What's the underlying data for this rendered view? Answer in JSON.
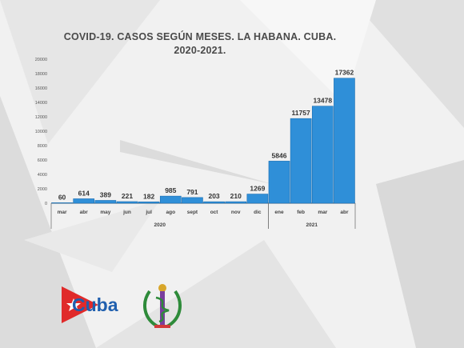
{
  "chart_data": {
    "type": "bar",
    "title_line1": "COVID-19. CASOS SEGÚN MESES. LA HABANA. CUBA.",
    "title_line2": "2020-2021.",
    "categories": [
      "mar",
      "abr",
      "may",
      "jun",
      "jul",
      "ago",
      "sept",
      "oct",
      "nov",
      "dic",
      "ene",
      "feb",
      "mar",
      "abr"
    ],
    "years": [
      {
        "label": "2020",
        "from": 0,
        "to": 9
      },
      {
        "label": "2021",
        "from": 10,
        "to": 13
      }
    ],
    "values": [
      60,
      614,
      389,
      221,
      182,
      985,
      791,
      203,
      210,
      1269,
      5846,
      11757,
      13478,
      17362
    ],
    "value_labels": [
      "60",
      "614",
      "389",
      "221",
      "182",
      "985",
      "791",
      "203",
      "210",
      "1269",
      "5846",
      "11757",
      "13478",
      "17362"
    ],
    "yticks": [
      0,
      2000,
      4000,
      6000,
      8000,
      10000,
      12000,
      14000,
      16000,
      18000,
      20000
    ],
    "ylim": [
      0,
      20000
    ],
    "bar_color": "#2f8fd8",
    "grid": false
  },
  "branding": {
    "text": "Cuba",
    "flag_colors": {
      "red": "#e02a2a",
      "white": "#ffffff"
    },
    "text_color": "#1f5fae"
  }
}
